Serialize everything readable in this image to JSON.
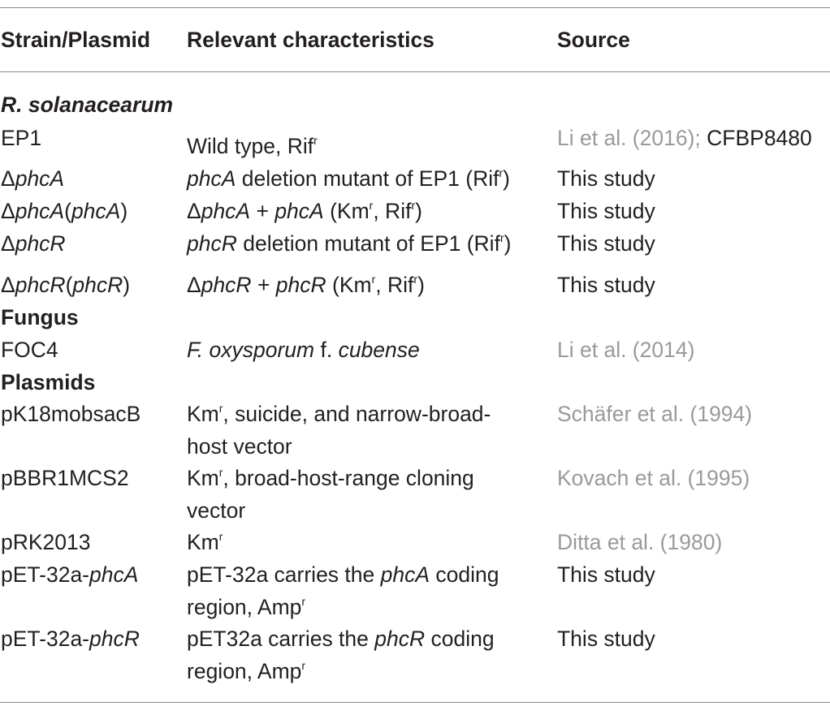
{
  "header": {
    "col1": "Strain/Plasmid",
    "col2": "Relevant characteristics",
    "col3": "Source"
  },
  "sections": {
    "rsolanacearum": "R. solanacearum",
    "fungus": "Fungus",
    "plasmids": "Plasmids"
  },
  "rows": {
    "ep1": {
      "strain": "EP1",
      "char_text": "Wild type, Rif",
      "char_sup": "r",
      "source_ref": "Li et al. (2016);",
      "source_extra": " CFBP8480"
    },
    "phcA": {
      "strain_delta": "Δ",
      "strain_gene": "phcA",
      "char_gene": "phcA",
      "char_text": " deletion mutant of EP1 (Rif",
      "char_sup": "r",
      "char_end": ")",
      "source": "This study"
    },
    "phcA_comp": {
      "strain_delta": "Δ",
      "strain_gene": "phcA",
      "strain_paren_open": "(",
      "strain_gene2": "phcA",
      "strain_paren_close": ")",
      "char_delta": "Δ",
      "char_gene": "phcA",
      "char_plus": " + ",
      "char_gene2": "phcA",
      "char_text": " (Km",
      "char_sup1": "r",
      "char_mid": ", Rif",
      "char_sup2": "r",
      "char_end": ")",
      "source": "This study"
    },
    "phcR": {
      "strain_delta": "Δ",
      "strain_gene": "phcR",
      "char_gene": "phcR",
      "char_text": " deletion mutant of EP1 (Rif",
      "char_sup": "r",
      "char_end": ")",
      "source": "This study"
    },
    "phcR_comp": {
      "strain_delta": "Δ",
      "strain_gene": "phcR",
      "strain_paren_open": "(",
      "strain_gene2": "phcR",
      "strain_paren_close": ")",
      "char_delta": "Δ",
      "char_gene": "phcR",
      "char_plus": " + ",
      "char_gene2": "phcR",
      "char_text": " (Km",
      "char_sup1": "r",
      "char_mid": ", Rif",
      "char_sup2": "r",
      "char_end": ")",
      "source": "This study"
    },
    "foc4": {
      "strain": "FOC4",
      "char_italic1": "F. oxysporum",
      "char_mid": " f. ",
      "char_italic2": "cubense",
      "source_ref": "Li et al. (2014)"
    },
    "pk18": {
      "strain": "pK18mobsacB",
      "char_a": "Km",
      "char_sup": "r",
      "char_b": ", suicide, and narrow-broad-",
      "char_line2": "host vector",
      "source_ref": "Schäfer et al. (1994)"
    },
    "pbbr": {
      "strain": "pBBR1MCS2",
      "char_a": "Km",
      "char_sup": "r",
      "char_b": ", broad-host-range cloning",
      "char_line2": "vector",
      "source_ref": "Kovach et al. (1995)"
    },
    "prk": {
      "strain": "pRK2013",
      "char_a": "Km",
      "char_sup": "r",
      "source_ref": "Ditta et al. (1980)"
    },
    "pet_phcA": {
      "strain_prefix": "pET-32a-",
      "strain_gene": "phcA",
      "char_a": "pET-32a carries the ",
      "char_gene": "phcA",
      "char_b": " coding",
      "char_line2a": "region, Amp",
      "char_sup": "r",
      "source": "This study"
    },
    "pet_phcR": {
      "strain_prefix": "pET-32a-",
      "strain_gene": "phcR",
      "char_a": "pET32a carries the ",
      "char_gene": "phcR",
      "char_b": " coding",
      "char_line2a": "region, Amp",
      "char_sup": "r",
      "source": "This study"
    }
  },
  "colors": {
    "text": "#231f20",
    "reference_link": "#9a9a9a",
    "rule": "#8a8a8a"
  }
}
